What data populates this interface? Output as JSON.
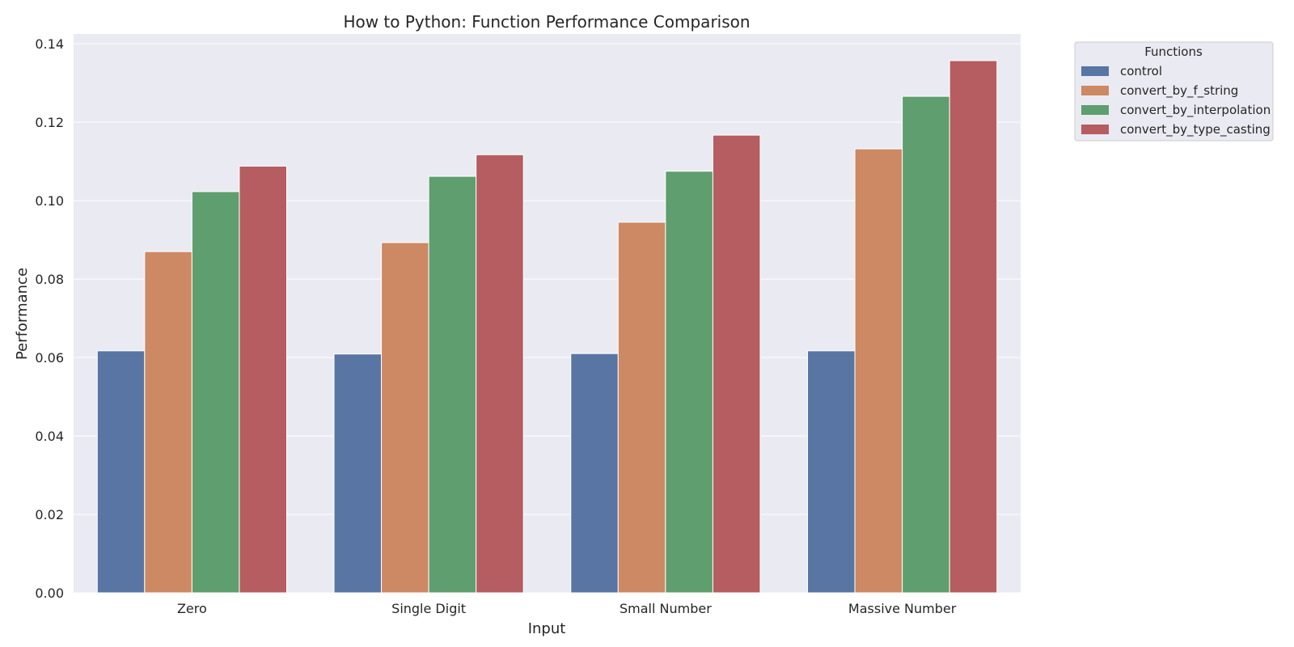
{
  "chart_data": {
    "type": "bar",
    "title": "How to Python: Function Performance Comparison",
    "xlabel": "Input",
    "ylabel": "Performance",
    "categories": [
      "Zero",
      "Single Digit",
      "Small Number",
      "Massive Number"
    ],
    "ylim": [
      0,
      0.1425
    ],
    "yticks": [
      0.0,
      0.02,
      0.04,
      0.06,
      0.08,
      0.1,
      0.12,
      0.14
    ],
    "ytick_labels": [
      "0.00",
      "0.02",
      "0.04",
      "0.06",
      "0.08",
      "0.10",
      "0.12",
      "0.14"
    ],
    "grid": true,
    "background": "#eaeaf2",
    "legend": {
      "title": "Functions",
      "placement": "outside-top-right"
    },
    "series": [
      {
        "name": "control",
        "color": "#5875a4",
        "values": [
          0.0617,
          0.0609,
          0.061,
          0.0617
        ]
      },
      {
        "name": "convert_by_f_string",
        "color": "#cc8963",
        "values": [
          0.087,
          0.0893,
          0.0945,
          0.1132
        ]
      },
      {
        "name": "convert_by_interpolation",
        "color": "#5f9e6e",
        "values": [
          0.1023,
          0.1062,
          0.1075,
          0.1266
        ]
      },
      {
        "name": "convert_by_type_casting",
        "color": "#b55d60",
        "values": [
          0.1088,
          0.1117,
          0.1167,
          0.1357
        ]
      }
    ]
  }
}
